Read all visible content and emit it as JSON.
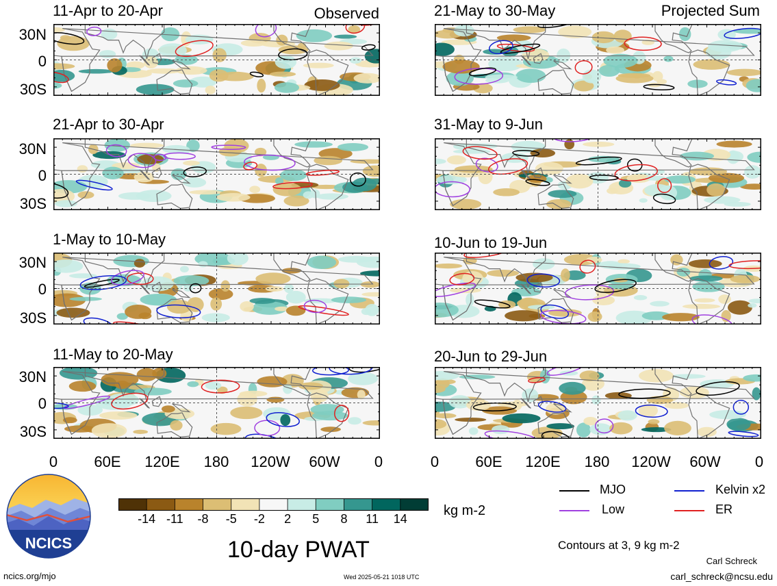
{
  "columns": {
    "left": "Observed",
    "right": "Projected Sum"
  },
  "panels": {
    "left": [
      "11-Apr to 20-Apr",
      "21-Apr to 30-Apr",
      "1-May to 10-May",
      "11-May to 20-May"
    ],
    "right": [
      "21-May to 30-May",
      "31-May to 9-Jun",
      "10-Jun to 19-Jun",
      "20-Jun to 29-Jun"
    ]
  },
  "lat_ticks": [
    "30N",
    "0",
    "30S"
  ],
  "lon_ticks": [
    "0",
    "60E",
    "120E",
    "180",
    "120W",
    "60W",
    "0"
  ],
  "colorbar": {
    "ticks": [
      "-14",
      "-11",
      "-8",
      "-5",
      "-2",
      "2",
      "5",
      "8",
      "11",
      "14"
    ],
    "colors": [
      "#4f3206",
      "#8b5a13",
      "#b9832c",
      "#dcbe74",
      "#f2e3b6",
      "#f7f7f7",
      "#c8ece6",
      "#80cdc1",
      "#35978f",
      "#01665e",
      "#013d35"
    ],
    "units": "kg m-2"
  },
  "title": "10-day PWAT",
  "legend": {
    "mjo": {
      "label": "MJO",
      "color": "#000000"
    },
    "low": {
      "label": "Low",
      "color": "#a040e0"
    },
    "kelvin": {
      "label": "Kelvin x2",
      "color": "#1020d0"
    },
    "er": {
      "label": "ER",
      "color": "#e02020"
    }
  },
  "contours_note": "Contours at 3, 9 kg m-2",
  "credit": {
    "name": "Carl Schreck",
    "email": "carl_schreck@ncsu.edu"
  },
  "footer": {
    "url": "ncics.org/mjo",
    "timestamp": "Wed 2025-05-21 1018 UTC"
  },
  "logo": {
    "text": "NCICS"
  }
}
